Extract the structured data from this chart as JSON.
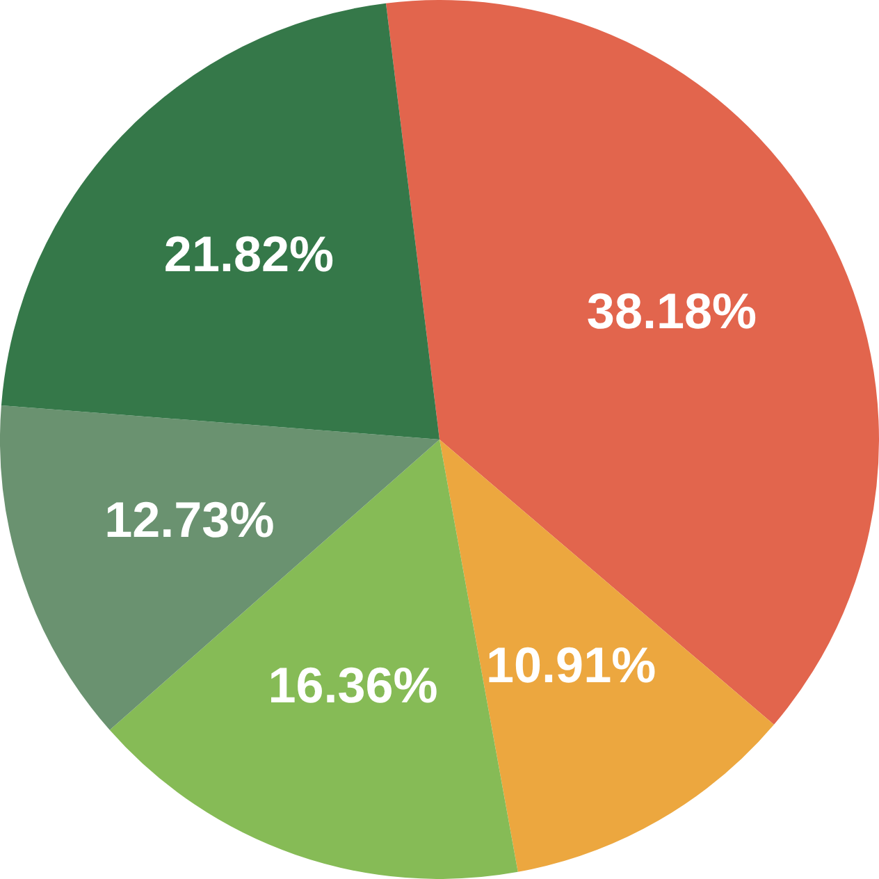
{
  "chart_data": {
    "type": "pie",
    "categories": [
      null,
      null,
      null,
      null,
      null
    ],
    "values": [
      38.18,
      10.91,
      16.36,
      12.73,
      21.82
    ],
    "colors": [
      "#e2654d",
      "#eca73f",
      "#86bb56",
      "#6a9270",
      "#357849"
    ],
    "value_labels": [
      "38.18%",
      "10.91%",
      "16.36%",
      "12.73%",
      "21.82%"
    ]
  }
}
